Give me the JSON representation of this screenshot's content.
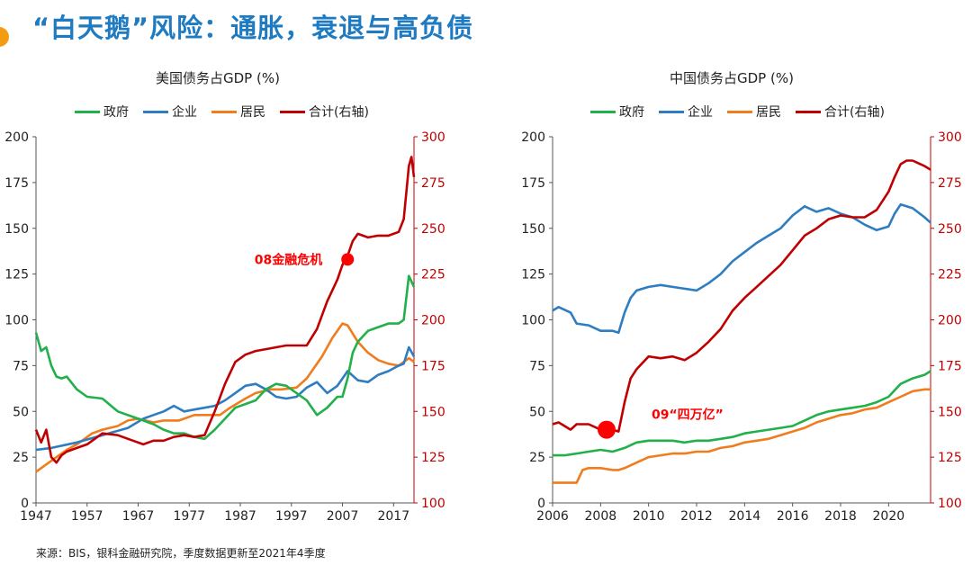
{
  "page": {
    "title": "“白天鹅”风险：通胀，衰退与高负债",
    "source": "来源：BIS，银科金融研究院，季度数据更新至2021年4季度"
  },
  "colors": {
    "gov": "#22b04b",
    "corp": "#2e7dc1",
    "house": "#f07c1e",
    "total": "#c00000"
  },
  "chart_data": [
    {
      "type": "line",
      "title": "美国债务占GDP (%)",
      "legend": [
        "政府",
        "企业",
        "居民",
        "合计(右轴)"
      ],
      "ylim": [
        0,
        200
      ],
      "y2lim": [
        100,
        300
      ],
      "yticks": [
        0,
        25,
        50,
        75,
        100,
        125,
        150,
        175,
        200
      ],
      "y2ticks": [
        100,
        125,
        150,
        175,
        200,
        225,
        250,
        275,
        300
      ],
      "xticks": [
        "1947",
        "1957",
        "1967",
        "1977",
        "1987",
        "1997",
        "2007",
        "2017"
      ],
      "xlim": [
        1947,
        2021
      ],
      "annotation": {
        "text": "08金融危机",
        "x": 2008,
        "y2": 233
      },
      "series": [
        {
          "name": "政府",
          "key": "gov",
          "axis": "left",
          "x": [
            1947,
            1948,
            1949,
            1950,
            1951,
            1952,
            1953,
            1955,
            1957,
            1960,
            1963,
            1966,
            1968,
            1970,
            1972,
            1974,
            1976,
            1978,
            1980,
            1982,
            1984,
            1986,
            1988,
            1990,
            1992,
            1994,
            1996,
            1998,
            2000,
            2002,
            2004,
            2006,
            2007,
            2008,
            2009,
            2010,
            2012,
            2014,
            2016,
            2018,
            2019,
            2020,
            2021
          ],
          "values": [
            93,
            83,
            85,
            75,
            69,
            68,
            69,
            62,
            58,
            57,
            50,
            47,
            45,
            43,
            40,
            38,
            38,
            36,
            35,
            40,
            46,
            52,
            54,
            56,
            62,
            65,
            64,
            60,
            56,
            48,
            52,
            58,
            58,
            68,
            82,
            88,
            94,
            96,
            98,
            98,
            100,
            124,
            118
          ]
        },
        {
          "name": "企业",
          "key": "corp",
          "axis": "left",
          "x": [
            1947,
            1950,
            1955,
            1960,
            1965,
            1968,
            1970,
            1972,
            1974,
            1976,
            1978,
            1980,
            1982,
            1984,
            1986,
            1988,
            1990,
            1992,
            1994,
            1996,
            1998,
            2000,
            2002,
            2004,
            2006,
            2008,
            2010,
            2012,
            2014,
            2016,
            2018,
            2019,
            2020,
            2021
          ],
          "values": [
            29,
            30,
            33,
            37,
            41,
            46,
            48,
            50,
            53,
            50,
            51,
            52,
            53,
            56,
            60,
            64,
            65,
            62,
            58,
            57,
            58,
            63,
            66,
            60,
            64,
            72,
            67,
            66,
            70,
            72,
            75,
            76,
            85,
            80
          ]
        },
        {
          "name": "居民",
          "key": "house",
          "axis": "left",
          "x": [
            1947,
            1950,
            1953,
            1955,
            1958,
            1960,
            1963,
            1965,
            1967,
            1970,
            1972,
            1975,
            1978,
            1980,
            1983,
            1985,
            1988,
            1990,
            1993,
            1995,
            1998,
            2000,
            2003,
            2005,
            2007,
            2008,
            2010,
            2012,
            2014,
            2016,
            2018,
            2020,
            2021
          ],
          "values": [
            17,
            23,
            29,
            32,
            38,
            40,
            42,
            45,
            46,
            44,
            45,
            45,
            48,
            48,
            48,
            52,
            57,
            60,
            62,
            62,
            63,
            68,
            80,
            90,
            98,
            97,
            88,
            82,
            78,
            76,
            75,
            79,
            77
          ]
        },
        {
          "name": "合计(右轴)",
          "key": "total",
          "axis": "right",
          "x": [
            1947,
            1948,
            1949,
            1950,
            1951,
            1952,
            1953,
            1955,
            1957,
            1960,
            1963,
            1966,
            1968,
            1970,
            1972,
            1974,
            1976,
            1978,
            1980,
            1982,
            1984,
            1986,
            1988,
            1990,
            1992,
            1994,
            1996,
            1998,
            2000,
            2002,
            2004,
            2006,
            2007,
            2008,
            2009,
            2010,
            2012,
            2014,
            2016,
            2018,
            2019,
            2020,
            2020.5,
            2021
          ],
          "values": [
            140,
            133,
            140,
            125,
            122,
            126,
            128,
            130,
            132,
            138,
            137,
            134,
            132,
            134,
            134,
            136,
            137,
            136,
            137,
            150,
            165,
            177,
            181,
            183,
            184,
            185,
            186,
            186,
            186,
            195,
            210,
            222,
            230,
            235,
            243,
            247,
            245,
            246,
            246,
            248,
            255,
            284,
            289,
            278
          ]
        }
      ]
    },
    {
      "type": "line",
      "title": "中国债务占GDP (%)",
      "legend": [
        "政府",
        "企业",
        "居民",
        "合计(右轴)"
      ],
      "ylim": [
        0,
        200
      ],
      "y2lim": [
        100,
        300
      ],
      "yticks": [
        0,
        25,
        50,
        75,
        100,
        125,
        150,
        175,
        200
      ],
      "y2ticks": [
        100,
        125,
        150,
        175,
        200,
        225,
        250,
        275,
        300
      ],
      "xticks": [
        "2006",
        "2008",
        "2010",
        "2012",
        "2014",
        "2016",
        "2018",
        "2020"
      ],
      "xlim": [
        2006,
        2021.75
      ],
      "annotation": {
        "text": "09“四万亿”",
        "x": 2008.25,
        "y2": 140
      },
      "series": [
        {
          "name": "政府",
          "key": "gov",
          "axis": "left",
          "x": [
            2006,
            2006.5,
            2007,
            2007.5,
            2008,
            2008.5,
            2009,
            2009.5,
            2010,
            2010.5,
            2011,
            2011.5,
            2012,
            2012.5,
            2013,
            2013.5,
            2014,
            2014.5,
            2015,
            2015.5,
            2016,
            2016.5,
            2017,
            2017.5,
            2018,
            2018.5,
            2019,
            2019.5,
            2020,
            2020.5,
            2021,
            2021.5,
            2021.75
          ],
          "values": [
            26,
            26,
            27,
            28,
            29,
            28,
            30,
            33,
            34,
            34,
            34,
            33,
            34,
            34,
            35,
            36,
            38,
            39,
            40,
            41,
            42,
            45,
            48,
            50,
            51,
            52,
            53,
            55,
            58,
            65,
            68,
            70,
            72
          ]
        },
        {
          "name": "企业",
          "key": "corp",
          "axis": "left",
          "x": [
            2006,
            2006.25,
            2006.75,
            2007,
            2007.5,
            2008,
            2008.5,
            2008.75,
            2009,
            2009.25,
            2009.5,
            2010,
            2010.5,
            2011,
            2011.5,
            2012,
            2012.5,
            2013,
            2013.5,
            2014,
            2014.5,
            2015,
            2015.5,
            2016,
            2016.5,
            2017,
            2017.5,
            2018,
            2018.5,
            2019,
            2019.5,
            2020,
            2020.25,
            2020.5,
            2021,
            2021.5,
            2021.75
          ],
          "values": [
            105,
            107,
            104,
            98,
            97,
            94,
            94,
            93,
            104,
            112,
            116,
            118,
            119,
            118,
            117,
            116,
            120,
            125,
            132,
            137,
            142,
            146,
            150,
            157,
            162,
            159,
            161,
            158,
            156,
            152,
            149,
            151,
            158,
            163,
            161,
            156,
            153
          ]
        },
        {
          "name": "居民",
          "key": "house",
          "axis": "left",
          "x": [
            2006,
            2006.5,
            2007,
            2007.25,
            2007.5,
            2008,
            2008.5,
            2008.75,
            2009,
            2009.5,
            2010,
            2010.5,
            2011,
            2011.5,
            2012,
            2012.5,
            2013,
            2013.5,
            2014,
            2014.5,
            2015,
            2015.5,
            2016,
            2016.5,
            2017,
            2017.5,
            2018,
            2018.5,
            2019,
            2019.5,
            2020,
            2020.5,
            2021,
            2021.5,
            2021.75
          ],
          "values": [
            11,
            11,
            11,
            18,
            19,
            19,
            18,
            18,
            19,
            22,
            25,
            26,
            27,
            27,
            28,
            28,
            30,
            31,
            33,
            34,
            35,
            37,
            39,
            41,
            44,
            46,
            48,
            49,
            51,
            52,
            55,
            58,
            61,
            62,
            62
          ]
        },
        {
          "name": "合计(右轴)",
          "key": "total",
          "axis": "right",
          "x": [
            2006,
            2006.25,
            2006.5,
            2006.75,
            2007,
            2007.5,
            2008,
            2008.25,
            2008.5,
            2008.75,
            2009,
            2009.25,
            2009.5,
            2010,
            2010.5,
            2011,
            2011.5,
            2012,
            2012.5,
            2013,
            2013.5,
            2014,
            2014.5,
            2015,
            2015.5,
            2016,
            2016.5,
            2017,
            2017.5,
            2018,
            2018.5,
            2019,
            2019.5,
            2020,
            2020.25,
            2020.5,
            2020.75,
            2021,
            2021.5,
            2021.75
          ],
          "values": [
            143,
            144,
            142,
            140,
            143,
            143,
            140,
            140,
            140,
            139,
            155,
            168,
            173,
            180,
            179,
            180,
            178,
            182,
            188,
            195,
            205,
            212,
            218,
            224,
            230,
            238,
            246,
            250,
            255,
            257,
            256,
            256,
            260,
            270,
            278,
            285,
            287,
            287,
            284,
            282
          ]
        }
      ]
    }
  ]
}
